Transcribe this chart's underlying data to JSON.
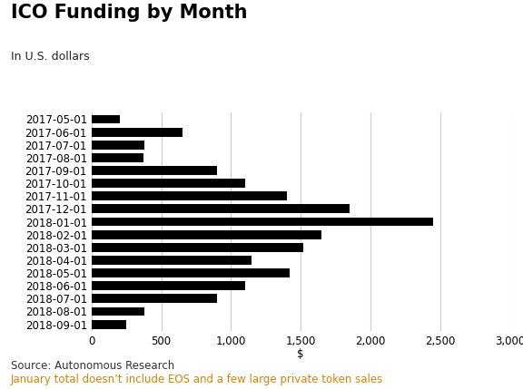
{
  "title": "ICO Funding by Month",
  "subtitle": "In U.S. dollars",
  "xlabel": "$",
  "source_text": "Source: Autonomous Research",
  "note_text": "January total doesn’t include EOS and a few large private token sales",
  "categories": [
    "2017-05-01",
    "2017-06-01",
    "2017-07-01",
    "2017-08-01",
    "2017-09-01",
    "2017-10-01",
    "2017-11-01",
    "2017-12-01",
    "2018-01-01",
    "2018-02-01",
    "2018-03-01",
    "2018-04-01",
    "2018-05-01",
    "2018-06-01",
    "2018-07-01",
    "2018-08-01",
    "2018-09-01"
  ],
  "values": [
    200,
    650,
    380,
    370,
    900,
    1100,
    1400,
    1850,
    2450,
    1650,
    1520,
    1150,
    1420,
    1100,
    900,
    380,
    250
  ],
  "bar_color": "#000000",
  "background_color": "#ffffff",
  "grid_color": "#cccccc",
  "title_fontsize": 15,
  "subtitle_fontsize": 9,
  "tick_fontsize": 8.5,
  "source_fontsize": 8.5,
  "note_color": "#d4820a",
  "source_color": "#333333",
  "xlim": [
    0,
    3000
  ],
  "xticks": [
    0,
    500,
    1000,
    1500,
    2000,
    2500,
    3000
  ]
}
